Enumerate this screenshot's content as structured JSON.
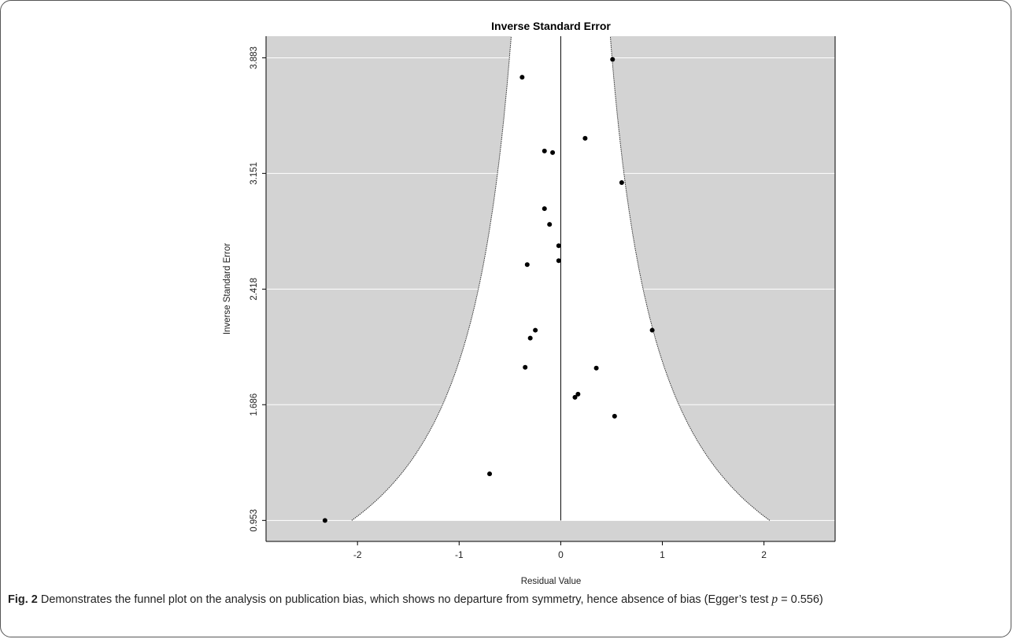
{
  "chart_data": {
    "type": "scatter",
    "title": "Inverse Standard Error",
    "xlabel": "Residual Value",
    "ylabel": "Inverse Standard Error",
    "xlim": [
      -2.9,
      2.7
    ],
    "ylim": [
      0.82,
      4.02
    ],
    "x_ticks": [
      -2,
      -1,
      0,
      1,
      2
    ],
    "x_tick_labels": [
      "-2",
      "-1",
      "0",
      "1",
      "2"
    ],
    "y_ticks": [
      0.953,
      1.686,
      2.418,
      3.151,
      3.883
    ],
    "y_tick_labels": [
      "0.953",
      "1.686",
      "2.418",
      "3.151",
      "3.883"
    ],
    "grid": "horizontal",
    "funnel": {
      "center": 0,
      "z": 1.96,
      "ymin": 0.953,
      "fill": "#d3d3d3",
      "interior": "#ffffff"
    },
    "points": [
      {
        "x": 0.51,
        "y": 3.873
      },
      {
        "x": -0.38,
        "y": 3.76
      },
      {
        "x": 0.24,
        "y": 3.373
      },
      {
        "x": -0.16,
        "y": 3.293
      },
      {
        "x": -0.08,
        "y": 3.283
      },
      {
        "x": 0.6,
        "y": 3.093
      },
      {
        "x": -0.16,
        "y": 2.928
      },
      {
        "x": -0.11,
        "y": 2.828
      },
      {
        "x": -0.02,
        "y": 2.693
      },
      {
        "x": -0.02,
        "y": 2.598
      },
      {
        "x": -0.33,
        "y": 2.573
      },
      {
        "x": 0.9,
        "y": 2.158
      },
      {
        "x": -0.25,
        "y": 2.158
      },
      {
        "x": -0.3,
        "y": 2.108
      },
      {
        "x": -0.35,
        "y": 1.923
      },
      {
        "x": 0.35,
        "y": 1.918
      },
      {
        "x": 0.17,
        "y": 1.753
      },
      {
        "x": 0.14,
        "y": 1.733
      },
      {
        "x": 0.53,
        "y": 1.613
      },
      {
        "x": -0.7,
        "y": 1.248
      },
      {
        "x": -2.32,
        "y": 0.953
      }
    ],
    "colors": {
      "points": "#000000",
      "shade": "#d3d3d3",
      "grid": "#ffffff",
      "axis": "#000000"
    }
  },
  "caption": {
    "label": "Fig. 2",
    "text_before": "Demonstrates the funnel plot on the analysis on publication bias, which shows no departure from symmetry, hence absence of bias (Egger’s test ",
    "p_symbol": "p",
    "text_after": " = 0.556)"
  }
}
